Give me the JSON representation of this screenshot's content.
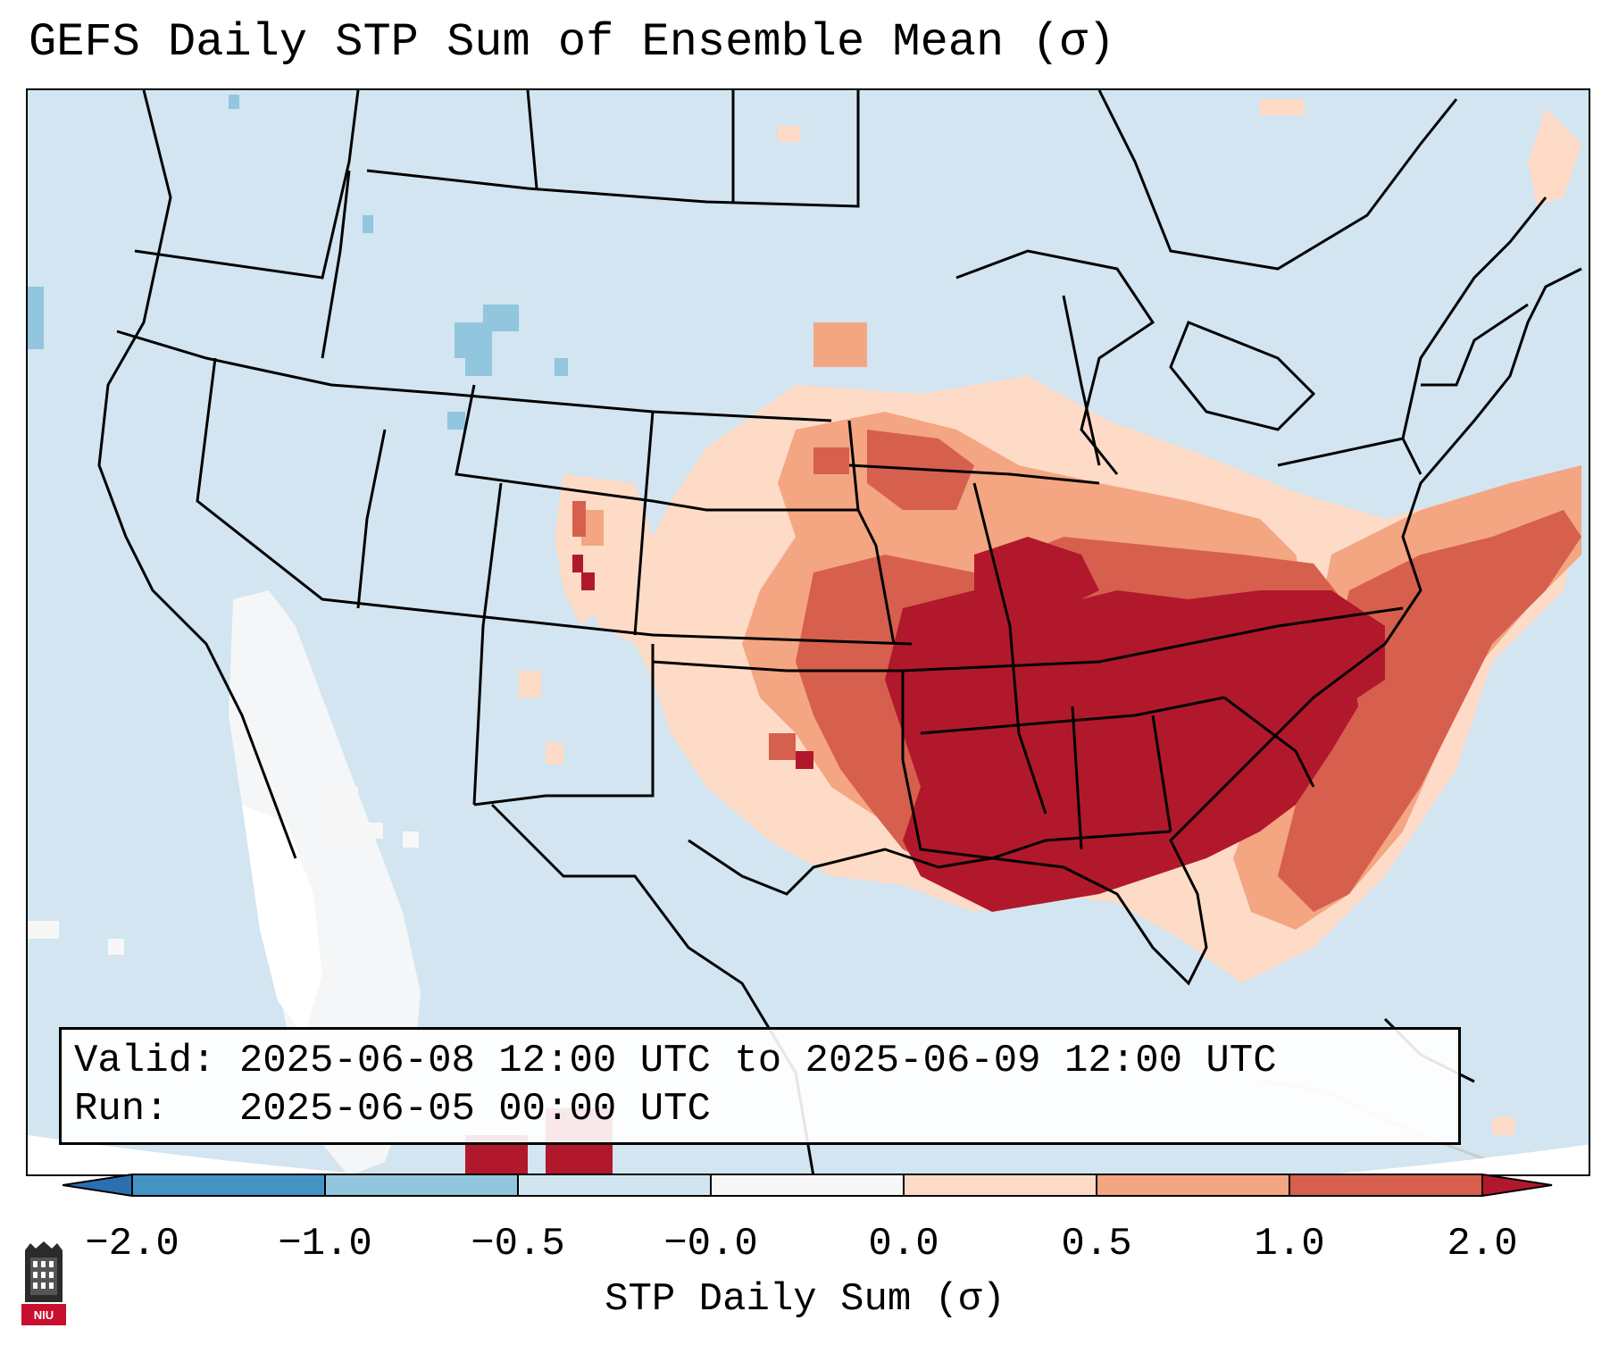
{
  "title": "GEFS Daily STP Sum of Ensemble Mean (σ)",
  "info": {
    "valid_line": "Valid: 2025-06-08 12:00 UTC to 2025-06-09 12:00 UTC",
    "run_line": "Run:   2025-06-05 00:00 UTC"
  },
  "colorbar": {
    "label": "STP Daily Sum (σ)",
    "ticks": [
      "−2.0",
      "−1.0",
      "−0.5",
      "−0.0",
      "0.0",
      "0.5",
      "1.0",
      "2.0"
    ],
    "bins": [
      {
        "name": "lt-minus-2",
        "color": "#2c6fb0"
      },
      {
        "name": "minus-2-to-minus-1",
        "color": "#4393c3"
      },
      {
        "name": "minus-1-to-minus-0.5",
        "color": "#92c5de"
      },
      {
        "name": "minus-0.5-to-0",
        "color": "#d1e5f0"
      },
      {
        "name": "zero",
        "color": "#f7f7f7"
      },
      {
        "name": "0-to-0.5",
        "color": "#fddbc7"
      },
      {
        "name": "0.5-to-1",
        "color": "#f4a582"
      },
      {
        "name": "1-to-2",
        "color": "#d6604d"
      },
      {
        "name": "gt-2",
        "color": "#b2182b"
      }
    ]
  },
  "map": {
    "region": "Continental United States",
    "background_color": "#d2e5f0",
    "highlights": [
      {
        "area": "Southeast",
        "category": "gt-2"
      },
      {
        "area": "Mid-South",
        "category": "1-to-2"
      },
      {
        "area": "Midwest",
        "category": "0.5-to-1"
      },
      {
        "area": "Western Atlantic",
        "category": "1-to-2"
      }
    ]
  },
  "logo": {
    "text": "NIU",
    "icon": "university-tower-icon"
  }
}
